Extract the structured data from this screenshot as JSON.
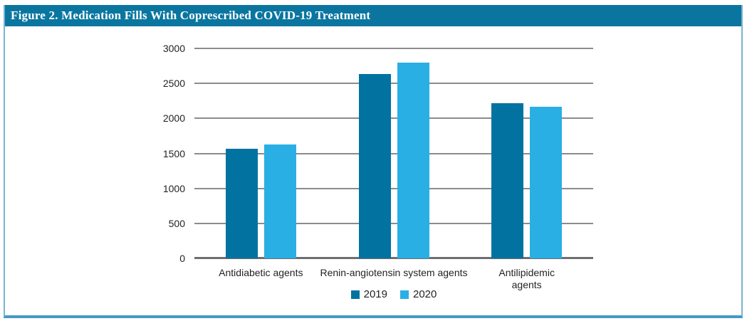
{
  "figure": {
    "title": "Figure 2. Medication Fills With Coprescribed COVID-19 Treatment"
  },
  "colors": {
    "header_bar": "#0a76a0",
    "frame_border_side": "#79b4d2",
    "frame_border_bottom": "#4399c4",
    "gridline": "#8a8c8f",
    "axis_line": "#6d6e71",
    "text": "#231f20",
    "series_2019": "#0273a0",
    "series_2020": "#29afe4"
  },
  "chart_data": {
    "type": "bar",
    "title": "Figure 2. Medication Fills With Coprescribed COVID-19 Treatment",
    "categories": [
      "Antidiabetic agents",
      "Renin-angiotensin system agents",
      "Antilipidemic\nagents"
    ],
    "series": [
      {
        "name": "2019",
        "color": "#0273a0",
        "values": [
          1570,
          2630,
          2220
        ]
      },
      {
        "name": "2020",
        "color": "#29afe4",
        "values": [
          1630,
          2800,
          2170
        ]
      }
    ],
    "xlabel": "",
    "ylabel": "",
    "ylim": [
      0,
      3000
    ],
    "yticks": [
      0,
      500,
      1000,
      1500,
      2000,
      2500,
      3000
    ],
    "grid": true,
    "legend_position": "bottom"
  }
}
